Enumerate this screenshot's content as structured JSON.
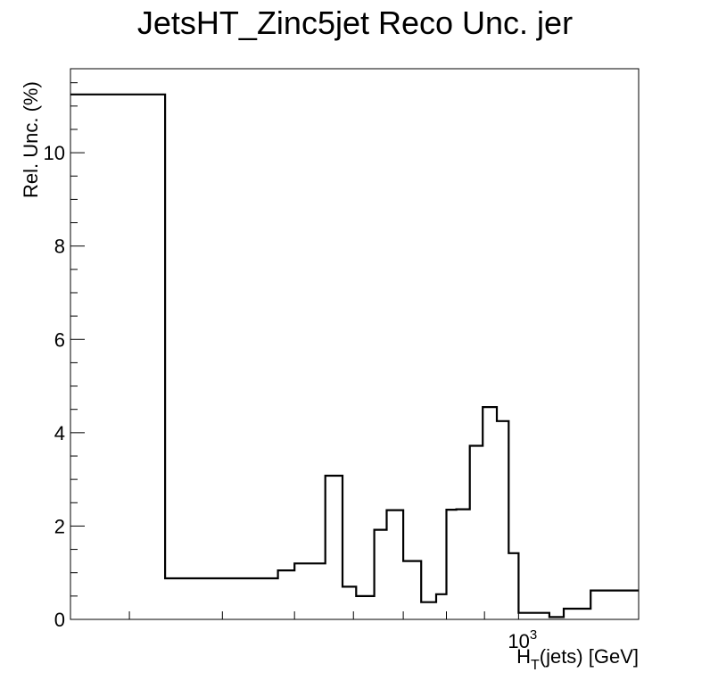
{
  "chart_data": {
    "type": "histogram",
    "title": "JetsHT_Zinc5jet Reco Unc. jer",
    "xlabel": {
      "main": "H",
      "sub": "T",
      "rest": "(jets) [GeV]"
    },
    "ylabel": "Rel. Unc. (%)",
    "x_scale": "log",
    "xlim": [
      250,
      1450
    ],
    "ylim": [
      0,
      11.8
    ],
    "x_tick_labels": [
      {
        "value": 1000,
        "base": "10",
        "exp": "3"
      }
    ],
    "y_ticks": [
      0,
      2,
      4,
      6,
      8,
      10
    ],
    "bin_edges": [
      250,
      335,
      435,
      475,
      500,
      550,
      580,
      605,
      640,
      665,
      700,
      740,
      775,
      800,
      825,
      860,
      895,
      935,
      970,
      1000,
      1100,
      1150,
      1250,
      1450
    ],
    "values": [
      11.25,
      0.88,
      0.88,
      1.05,
      1.2,
      3.08,
      0.7,
      0.5,
      1.92,
      2.34,
      1.25,
      0.37,
      0.54,
      2.35,
      2.36,
      3.72,
      4.55,
      4.25,
      1.42,
      0.14,
      0.05,
      0.23,
      0.62
    ]
  }
}
